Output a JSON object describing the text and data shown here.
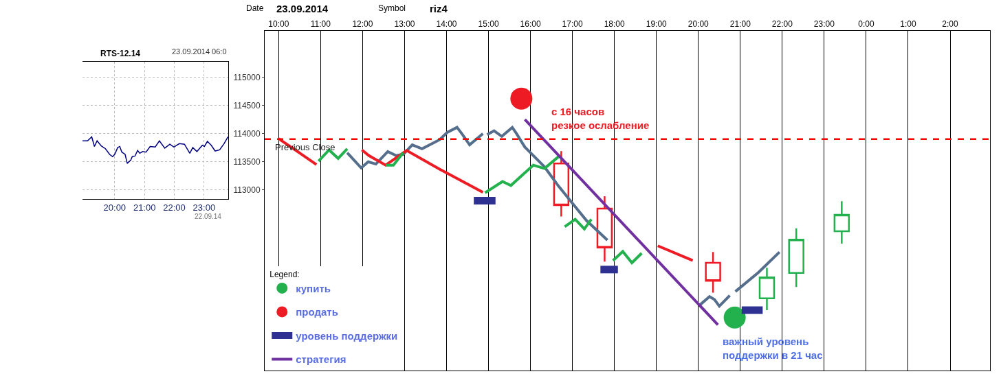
{
  "chart_data": [
    {
      "type": "line",
      "title": "RTS-12.14",
      "color": "#000080",
      "annotations": [
        "23.09.2014 06:0",
        "22.09.14"
      ],
      "x": [
        18.92,
        19.09,
        19.23,
        19.32,
        19.41,
        19.55,
        19.69,
        19.83,
        19.93,
        20.0,
        20.1,
        20.17,
        20.24,
        20.35,
        20.42,
        20.54,
        20.59,
        20.68,
        20.77,
        20.84,
        20.94,
        21.05,
        21.19,
        21.36,
        21.5,
        21.68,
        21.85,
        21.99,
        22.17,
        22.34,
        22.52,
        22.62,
        22.76,
        22.94,
        23.01,
        23.11,
        23.24,
        23.37,
        23.52,
        23.67,
        23.8
      ],
      "values": [
        113870,
        113870,
        113940,
        113770,
        113870,
        113780,
        113730,
        113630,
        113590,
        113630,
        113750,
        113770,
        113670,
        113630,
        113470,
        113530,
        113590,
        113600,
        113700,
        113650,
        113680,
        113670,
        113770,
        113760,
        113870,
        113740,
        113810,
        113760,
        113820,
        113810,
        113650,
        113750,
        113680,
        113790,
        113770,
        113860,
        113790,
        113690,
        113710,
        113820,
        113940
      ],
      "xlim": [
        18.92,
        23.81
      ],
      "xticks": [
        {
          "value": 20,
          "label": "20:00"
        },
        {
          "value": 21,
          "label": "21:00"
        },
        {
          "value": 22,
          "label": "22:00"
        },
        {
          "value": 23,
          "label": "23:00"
        }
      ],
      "ylim": [
        112840,
        115270
      ],
      "yticks": [
        113000,
        113500,
        114000,
        114500,
        115000
      ],
      "tick_labels": "x",
      "grid": true
    },
    {
      "type": "line",
      "annotations": [
        "Date",
        "23.09.2014",
        "Symbol",
        "riz4",
        "с 16 часов\nрезкое ослабление",
        "важный уровень\nподдержки в 21 час"
      ],
      "xlim": [
        "2014-09-23T09:40",
        "2014-09-24T02:57"
      ],
      "xticks": [
        {
          "value": "2014-09-23T10:00",
          "label": "10:00"
        },
        {
          "value": "2014-09-23T11:00",
          "label": "11:00"
        },
        {
          "value": "2014-09-23T12:00",
          "label": "12:00"
        },
        {
          "value": "2014-09-23T13:00",
          "label": "13:00"
        },
        {
          "value": "2014-09-23T14:00",
          "label": "14:00"
        },
        {
          "value": "2014-09-23T15:00",
          "label": "15:00"
        },
        {
          "value": "2014-09-23T16:00",
          "label": "16:00"
        },
        {
          "value": "2014-09-23T17:00",
          "label": "17:00"
        },
        {
          "value": "2014-09-23T18:00",
          "label": "18:00"
        },
        {
          "value": "2014-09-23T19:00",
          "label": "19:00"
        },
        {
          "value": "2014-09-23T20:00",
          "label": "20:00"
        },
        {
          "value": "2014-09-23T21:00",
          "label": "21:00"
        },
        {
          "value": "2014-09-23T22:00",
          "label": "22:00"
        },
        {
          "value": "2014-09-23T23:00",
          "label": "23:00"
        },
        {
          "value": "2014-09-24T00:00",
          "label": "0:00"
        },
        {
          "value": "2014-09-24T01:00",
          "label": "1:00"
        },
        {
          "value": "2014-09-24T02:00",
          "label": "2:00"
        }
      ],
      "ylim": [
        109800,
        115820
      ],
      "yticks": [
        113000,
        113500,
        114000,
        114500,
        115000
      ],
      "grid": "x",
      "legend": "bottom left",
      "legend_title": "Legend:",
      "ref_lines": [
        {
          "axis": "y",
          "value": 113900,
          "label": "Previous Close",
          "color": "#ff0000",
          "line_style": "dashed"
        }
      ],
      "series": [
        {
          "color": "#546e8c",
          "x": [
            "2014-09-23T11:38",
            "2014-09-23T11:58",
            "2014-09-23T12:08",
            "2014-09-23T12:19",
            "2014-09-23T12:36",
            "2014-09-23T12:48",
            "2014-09-23T12:58",
            "2014-09-23T13:11",
            "2014-09-23T13:25",
            "2014-09-23T13:50",
            "2014-09-23T14:01",
            "2014-09-23T14:15",
            "2014-09-23T14:23",
            "2014-09-23T14:33",
            "2014-09-23T14:52",
            "2014-09-23T14:54",
            "2014-09-23T14:58",
            "2014-09-23T15:08",
            "2014-09-23T15:19",
            "2014-09-23T15:34",
            "2014-09-23T15:40",
            "2014-09-23T15:52",
            "2014-09-23T16:20",
            "2014-09-23T16:40",
            "2014-09-23T16:57",
            "2014-09-23T17:20",
            "2014-09-23T17:50",
            "2014-09-23T19:00",
            "2014-09-23T20:02",
            "2014-09-23T20:16",
            "2014-09-23T20:23",
            "2014-09-23T20:30",
            "2014-09-23T20:45",
            "2014-09-23T20:48",
            "2014-09-23T20:53",
            "2014-09-23T21:26",
            "2014-09-23T21:56"
          ],
          "values": [
            113660,
            113390,
            113500,
            113460,
            113680,
            113610,
            113630,
            113800,
            113730,
            113890,
            114020,
            114110,
            113980,
            113800,
            114000,
            null,
            113980,
            114050,
            113950,
            114110,
            114000,
            113760,
            113410,
            113070,
            112810,
            112460,
            112110,
            null,
            110960,
            111110,
            111060,
            110940,
            111130,
            null,
            111200,
            111540,
            111900
          ]
        },
        {
          "color": "#ed1c24",
          "x": [
            "2014-09-23T10:00",
            "2014-09-23T10:27",
            "2014-09-23T10:54",
            "2014-09-23T11:30",
            "2014-09-23T11:59",
            "2014-09-23T12:09",
            "2014-09-23T12:33",
            "2014-09-23T13:03",
            "2014-09-23T13:50",
            "2014-09-23T14:52",
            "2014-09-23T18:00",
            "2014-09-23T19:02",
            "2014-09-23T19:52"
          ],
          "values": [
            113910,
            113680,
            113450,
            null,
            113710,
            113610,
            113440,
            113700,
            113370,
            112960,
            null,
            112010,
            111750
          ]
        },
        {
          "color": "#22b14c",
          "x": [
            "2014-09-23T10:57",
            "2014-09-23T11:12",
            "2014-09-23T11:25",
            "2014-09-23T11:38",
            "2014-09-23T12:12",
            "2014-09-23T12:33",
            "2014-09-23T12:44",
            "2014-09-23T12:58",
            "2014-09-23T14:00",
            "2014-09-23T14:55",
            "2014-09-23T15:20",
            "2014-09-23T15:32",
            "2014-09-23T16:04",
            "2014-09-23T16:20",
            "2014-09-23T16:40",
            "2014-09-23T16:45",
            "2014-09-23T16:49",
            "2014-09-23T17:04",
            "2014-09-23T17:17",
            "2014-09-23T17:27",
            "2014-09-23T17:42",
            "2014-09-23T17:58",
            "2014-09-23T18:12",
            "2014-09-23T18:25",
            "2014-09-23T18:39"
          ],
          "values": [
            113510,
            113710,
            113560,
            113730,
            null,
            113440,
            113440,
            113660,
            null,
            112950,
            113150,
            113080,
            113440,
            113380,
            113590,
            null,
            112350,
            112480,
            112310,
            112480,
            null,
            111750,
            111910,
            111710,
            111880
          ]
        },
        {
          "type": "scatter",
          "name": "купить",
          "color": "#22b14c",
          "x": [
            "2014-09-23T20:52"
          ],
          "values": [
            110740
          ]
        },
        {
          "type": "scatter",
          "name": "продать",
          "color": "#ed1c24",
          "x": [
            "2014-09-23T15:47"
          ],
          "values": [
            114620
          ]
        },
        {
          "name": "уровень поддержки",
          "color": "#2e3192",
          "x": [
            "2014-09-23T14:39",
            "2014-09-23T15:10",
            "2014-09-23T15:30",
            "2014-09-23T17:40",
            "2014-09-23T18:05",
            "2014-09-23T19:00",
            "2014-09-23T21:02",
            "2014-09-23T21:32"
          ],
          "values": [
            112810,
            112810,
            null,
            111590,
            111590,
            null,
            110870,
            110870
          ]
        },
        {
          "name": "стратегия",
          "color": "#7030a0",
          "x": [
            "2014-09-23T15:52",
            "2014-09-23T20:28"
          ],
          "values": [
            114250,
            110610
          ]
        },
        {
          "type": "candlestick",
          "color": "#ed1c24",
          "x": [
            "2014-09-23T16:44",
            "2014-09-23T17:46",
            "2014-09-23T20:21"
          ],
          "ohlc": [
            [
              113470,
              113690,
              112530,
              112730
            ],
            [
              112670,
              112890,
              111730,
              111980
            ],
            [
              111710,
              111900,
              111180,
              111390
            ]
          ]
        },
        {
          "type": "candlestick",
          "color": "#22b14c",
          "x": [
            "2014-09-23T21:38",
            "2014-09-23T22:20",
            "2014-09-23T23:25"
          ],
          "ohlc": [
            [
              111080,
              111620,
              110870,
              111450
            ],
            [
              111530,
              112320,
              111280,
              112120
            ],
            [
              112270,
              112800,
              112050,
              112560
            ]
          ]
        }
      ]
    }
  ]
}
